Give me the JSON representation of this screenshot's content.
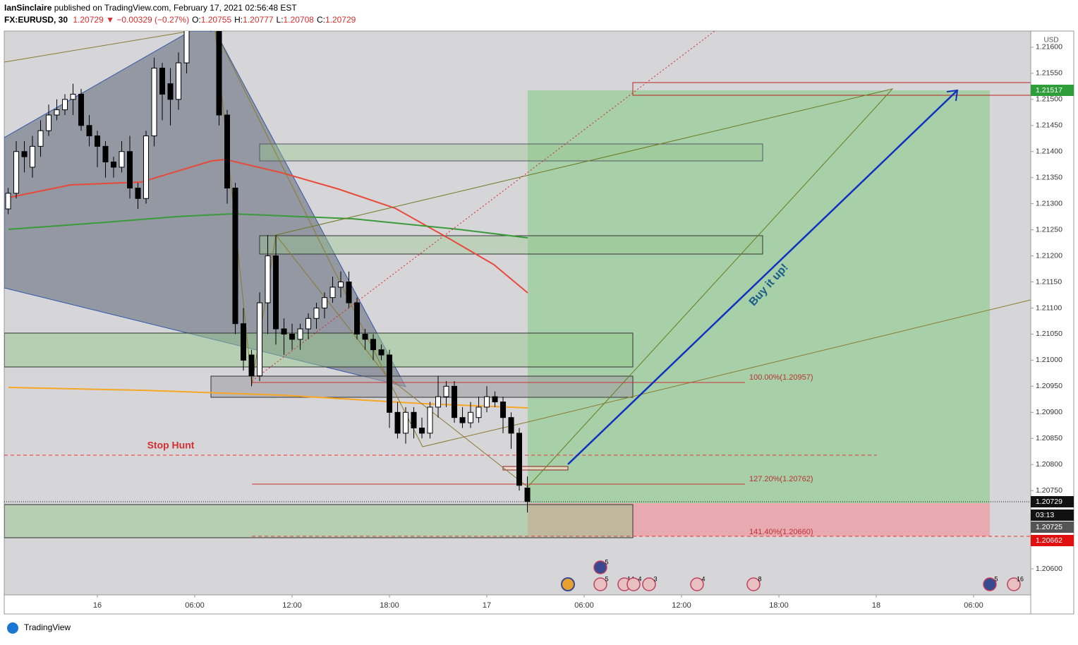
{
  "header": {
    "publisher": "IanSinclaire",
    "published": "published on TradingView.com, February 17, 2021 02:56:48 EST",
    "symbol": "FX:EURUSD, 30",
    "last": "1.20729",
    "change": "▼ −0.00329 (−0.27%)",
    "ohlc": [
      {
        "key": "O:",
        "value": "1.20755"
      },
      {
        "key": "H:",
        "value": "1.20777"
      },
      {
        "key": "L:",
        "value": "1.20708"
      },
      {
        "key": "C:",
        "value": "1.20729"
      }
    ]
  },
  "chart_data": {
    "type": "candlestick",
    "currency": "USD",
    "up_color": "#ffffff",
    "down_color": "#000000",
    "x": [
      -5.5,
      -5,
      -4.5,
      -4,
      -3.5,
      -3,
      -2.5,
      -2,
      -1.5,
      -1,
      -0.5,
      0,
      0.5,
      1,
      1.5,
      2,
      2.5,
      3,
      3.5,
      4,
      4.5,
      5,
      5.5,
      6,
      6.5,
      7,
      7.5,
      8,
      8.5,
      9,
      9.5,
      10,
      10.5,
      11,
      11.5,
      12,
      12.5,
      13,
      13.5,
      14,
      14.5,
      15,
      15.5,
      16,
      16.5,
      17,
      17.5,
      18,
      18.5,
      19,
      19.5,
      20,
      20.5,
      21,
      21.5,
      22,
      22.5,
      23,
      23.5,
      24,
      24.5,
      25,
      25.5,
      26,
      26.5
    ],
    "open": [
      1.2129,
      1.2132,
      1.214,
      1.2137,
      1.2141,
      1.2144,
      1.2147,
      1.2148,
      1.215,
      1.2151,
      1.2145,
      1.2143,
      1.2141,
      1.2138,
      1.2137,
      1.214,
      1.2133,
      1.2131,
      1.2143,
      1.2156,
      1.2153,
      1.215,
      1.2157,
      1.2165,
      1.217,
      1.2168,
      1.2165,
      1.2147,
      1.2133,
      1.2107,
      1.2101,
      1.2097,
      1.2111,
      1.212,
      1.2106,
      1.2105,
      1.2104,
      1.2106,
      1.2108,
      1.211,
      1.2112,
      1.2114,
      1.2115,
      1.2111,
      1.2105,
      1.2104,
      1.2102,
      1.2101,
      1.209,
      1.2086,
      1.209,
      1.2087,
      1.2086,
      1.2091,
      1.2093,
      1.2095,
      1.2089,
      1.2088,
      1.2089,
      1.2091,
      1.2093,
      1.2092,
      1.2089,
      1.2086,
      1.20755
    ],
    "high": [
      1.2133,
      1.2142,
      1.2142,
      1.2143,
      1.2146,
      1.2149,
      1.215,
      1.2151,
      1.2153,
      1.2152,
      1.2147,
      1.2144,
      1.2142,
      1.2139,
      1.2142,
      1.2143,
      1.2134,
      1.2144,
      1.2158,
      1.2157,
      1.2156,
      1.2159,
      1.2167,
      1.2172,
      1.2173,
      1.217,
      1.2166,
      1.2148,
      1.2134,
      1.211,
      1.2102,
      1.2113,
      1.2124,
      1.2124,
      1.2108,
      1.2107,
      1.2107,
      1.2109,
      1.2111,
      1.2113,
      1.2116,
      1.2117,
      1.2117,
      1.2112,
      1.2106,
      1.2105,
      1.2103,
      1.2102,
      1.2092,
      1.2091,
      1.2091,
      1.2089,
      1.2092,
      1.2097,
      1.2096,
      1.2096,
      1.2091,
      1.2092,
      1.2093,
      1.2095,
      1.2094,
      1.2093,
      1.209,
      1.2087,
      1.20777
    ],
    "low": [
      1.2128,
      1.2131,
      1.2136,
      1.2135,
      1.2139,
      1.2143,
      1.2146,
      1.2147,
      1.2147,
      1.2144,
      1.2141,
      1.2137,
      1.2135,
      1.2135,
      1.2136,
      1.2131,
      1.2129,
      1.213,
      1.2141,
      1.2146,
      1.2145,
      1.2148,
      1.2155,
      1.2164,
      1.2166,
      1.2163,
      1.2145,
      1.213,
      1.2105,
      1.2098,
      1.2095,
      1.2096,
      1.2105,
      1.2103,
      1.2101,
      1.2102,
      1.2102,
      1.2104,
      1.2106,
      1.2108,
      1.2111,
      1.2112,
      1.211,
      1.2104,
      1.2102,
      1.21,
      1.21,
      1.2087,
      1.2085,
      1.2084,
      1.2085,
      1.2085,
      1.2085,
      1.2089,
      1.2091,
      1.2088,
      1.2087,
      1.2087,
      1.2088,
      1.209,
      1.2091,
      1.2086,
      1.2083,
      1.2075,
      1.20708
    ],
    "close": [
      1.2132,
      1.214,
      1.2139,
      1.2141,
      1.2144,
      1.2147,
      1.2148,
      1.215,
      1.2151,
      1.2145,
      1.2143,
      1.2141,
      1.2138,
      1.2137,
      1.214,
      1.2133,
      1.2131,
      1.2143,
      1.2156,
      1.2151,
      1.215,
      1.2157,
      1.2165,
      1.217,
      1.2168,
      1.2165,
      1.2147,
      1.2133,
      1.2107,
      1.21,
      1.2097,
      1.2111,
      1.212,
      1.2106,
      1.2105,
      1.2104,
      1.2106,
      1.2108,
      1.211,
      1.2112,
      1.2114,
      1.2115,
      1.2111,
      1.2105,
      1.2104,
      1.2102,
      1.2101,
      1.209,
      1.2086,
      1.209,
      1.2087,
      1.2086,
      1.2091,
      1.2093,
      1.2095,
      1.2089,
      1.2088,
      1.209,
      1.2091,
      1.2093,
      1.2092,
      1.2089,
      1.2086,
      1.2076,
      1.20729
    ],
    "xlim": [
      -5.74,
      57.52
    ],
    "xticks": [
      {
        "value": 0,
        "label": "16"
      },
      {
        "value": 6,
        "label": "06:00"
      },
      {
        "value": 12,
        "label": "12:00"
      },
      {
        "value": 18,
        "label": "18:00"
      },
      {
        "value": 24,
        "label": "17"
      },
      {
        "value": 30,
        "label": "06:00"
      },
      {
        "value": 36,
        "label": "12:00"
      },
      {
        "value": 42,
        "label": "18:00"
      },
      {
        "value": 48,
        "label": "18"
      },
      {
        "value": 54,
        "label": "06:00"
      }
    ],
    "ylim": [
      1.2055,
      1.21631
    ],
    "yticks": [
      {
        "value": 1.206,
        "label": "1.20600"
      },
      {
        "value": 1.2065,
        "label": "1.20650"
      },
      {
        "value": 1.207,
        "label": "1.20700"
      },
      {
        "value": 1.2075,
        "label": "1.20750"
      },
      {
        "value": 1.208,
        "label": "1.20800"
      },
      {
        "value": 1.2085,
        "label": "1.20850"
      },
      {
        "value": 1.209,
        "label": "1.20900"
      },
      {
        "value": 1.2095,
        "label": "1.20950"
      },
      {
        "value": 1.21,
        "label": "1.21000"
      },
      {
        "value": 1.2105,
        "label": "1.21050"
      },
      {
        "value": 1.211,
        "label": "1.21100"
      },
      {
        "value": 1.2115,
        "label": "1.21150"
      },
      {
        "value": 1.212,
        "label": "1.21200"
      },
      {
        "value": 1.2125,
        "label": "1.21250"
      },
      {
        "value": 1.213,
        "label": "1.21300"
      },
      {
        "value": 1.2135,
        "label": "1.21350"
      },
      {
        "value": 1.214,
        "label": "1.21400"
      },
      {
        "value": 1.2145,
        "label": "1.21450"
      },
      {
        "value": 1.215,
        "label": "1.21500"
      },
      {
        "value": 1.2155,
        "label": "1.21550"
      },
      {
        "value": 1.216,
        "label": "1.21600"
      }
    ],
    "annotations": {
      "stop_hunt": "Stop Hunt",
      "buy": "Buy it up!",
      "fib_labels": [
        "100.00%(1.20957)",
        "127.20%(1.20762)",
        "141.40%(1.20660)"
      ],
      "price_tags": [
        "1.21517",
        "1.20729",
        "03:13",
        "1.20725",
        "1.20662"
      ],
      "event_counts": [
        "5",
        "5",
        "14",
        "4",
        "3",
        "4",
        "8",
        "5",
        "16"
      ]
    }
  },
  "footer": "TradingView"
}
